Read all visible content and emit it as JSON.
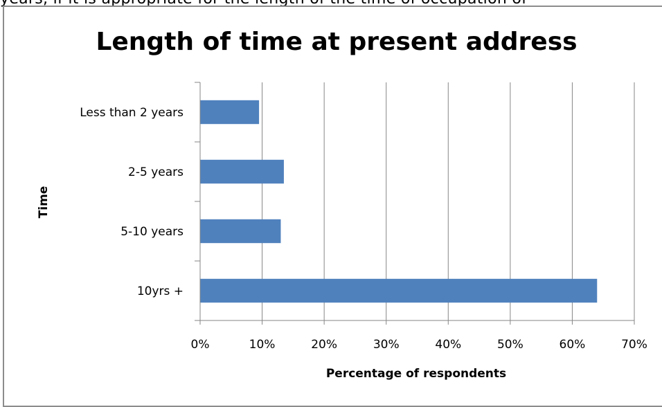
{
  "page": {
    "clipped_text": "years,    if   it is appropriate for the length of the time of occupation of"
  },
  "chart_data": {
    "type": "bar",
    "orientation": "horizontal",
    "title": "Length of time at present address",
    "xlabel": "Percentage of respondents",
    "ylabel": "Time",
    "categories": [
      "Less than 2 years",
      "2-5 years",
      "5-10 years",
      "10yrs +"
    ],
    "values": [
      9.5,
      13.5,
      13,
      64
    ],
    "xlim": [
      0,
      70
    ],
    "x_ticks": [
      "0%",
      "10%",
      "20%",
      "30%",
      "40%",
      "50%",
      "60%",
      "70%"
    ],
    "grid": true,
    "legend": "none",
    "bar_color": "#4f81bd"
  }
}
